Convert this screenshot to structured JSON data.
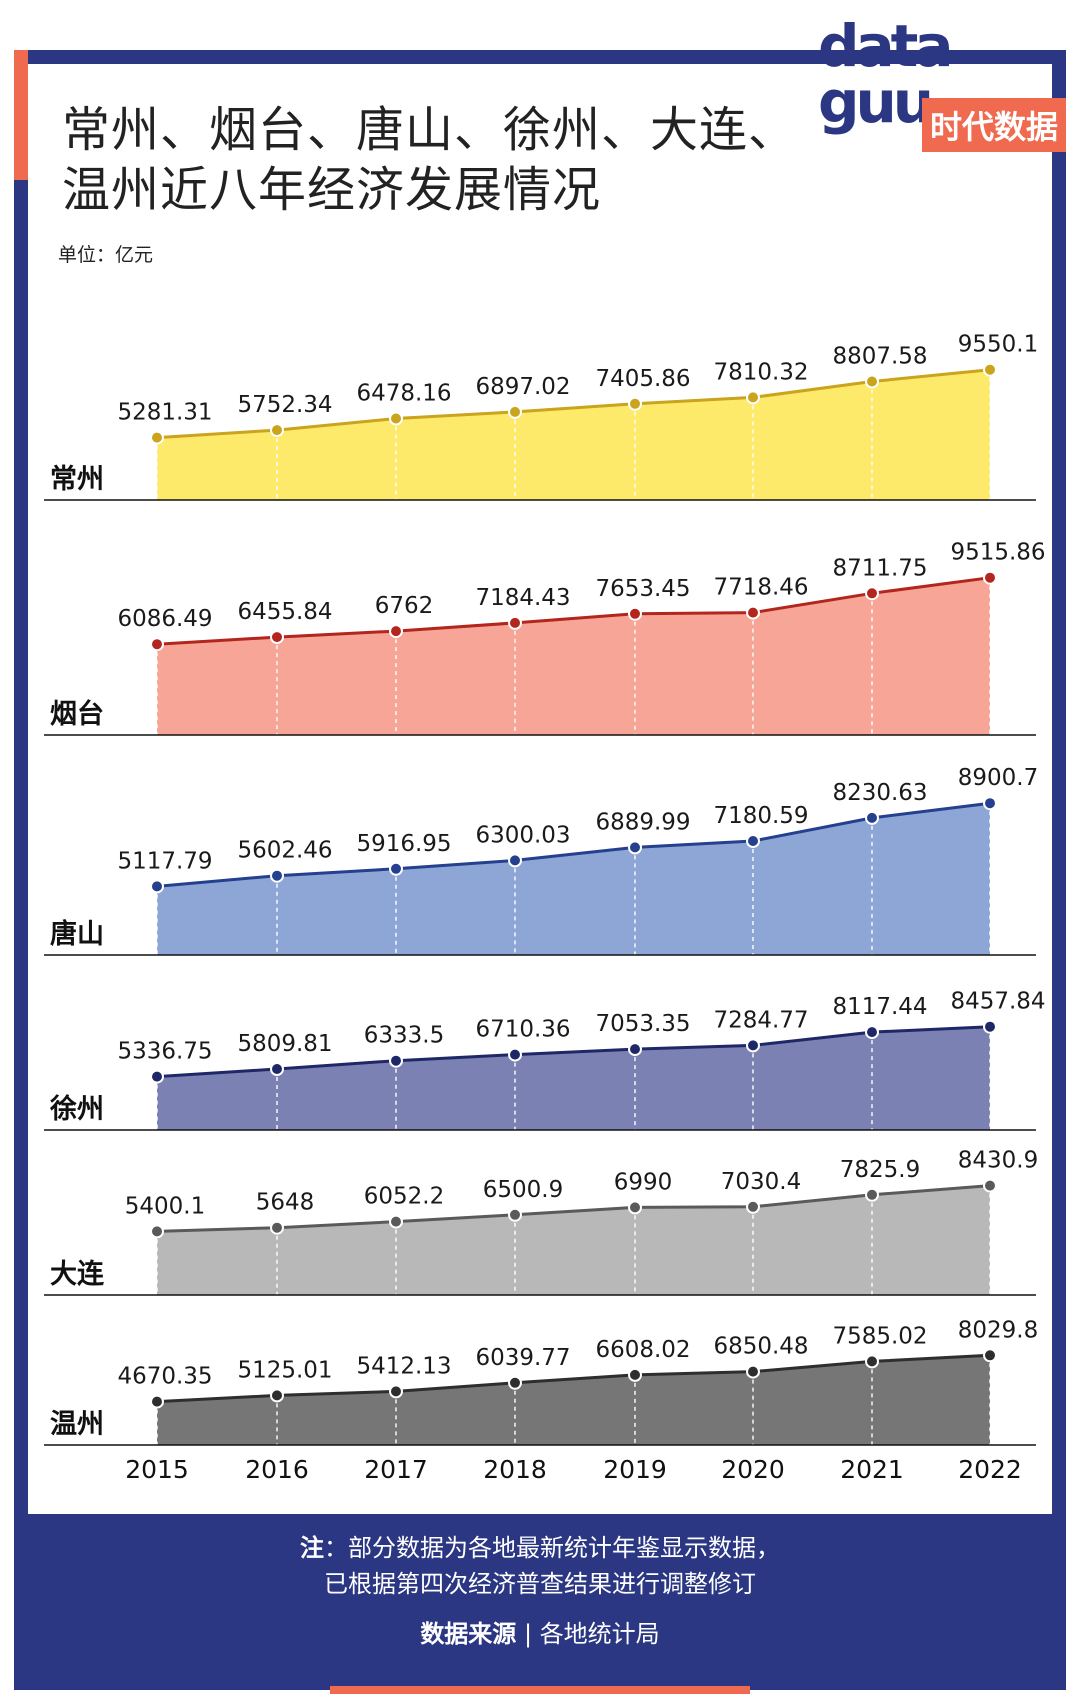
{
  "title": [
    "常州、烟台、唐山、徐州、大连、",
    "温州近八年经济发展情况"
  ],
  "unit": "单位：亿元",
  "logo": {
    "text_top": "data",
    "text_bottom": "guu",
    "cn": "时代数据"
  },
  "note": {
    "head": "注",
    "line1": "：部分数据为各地最新统计年鉴显示数据，",
    "line2": "已根据第四次经济普查结果进行调整修订"
  },
  "source": {
    "label": "数据来源",
    "sep": "|",
    "value": "各地统计局"
  },
  "colors": {
    "frame": "#2b3782",
    "accent": "#ef6a4f"
  },
  "chart_data": {
    "type": "area",
    "categories": [
      "2015",
      "2016",
      "2017",
      "2018",
      "2019",
      "2020",
      "2021",
      "2022"
    ],
    "series": [
      {
        "name": "常州",
        "values": [
          5281.31,
          5752.34,
          6478.16,
          6897.02,
          7405.86,
          7810.32,
          8807.58,
          9550.1
        ],
        "labels": [
          "5281.31",
          "5752.34",
          "6478.16",
          "6897.02",
          "7405.86",
          "7810.32",
          "8807.58",
          "9550.1"
        ],
        "fill": "#fde96a",
        "line": "#c9a41c"
      },
      {
        "name": "烟台",
        "values": [
          6086.49,
          6455.84,
          6762,
          7184.43,
          7653.45,
          7718.46,
          8711.75,
          9515.86
        ],
        "labels": [
          "6086.49",
          "6455.84",
          "6762",
          "7184.43",
          "7653.45",
          "7718.46",
          "8711.75",
          "9515.86"
        ],
        "fill": "#f6a596",
        "line": "#b3261e"
      },
      {
        "name": "唐山",
        "values": [
          5117.79,
          5602.46,
          5916.95,
          6300.03,
          6889.99,
          7180.59,
          8230.63,
          8900.7
        ],
        "labels": [
          "5117.79",
          "5602.46",
          "5916.95",
          "6300.03",
          "6889.99",
          "7180.59",
          "8230.63",
          "8900.7"
        ],
        "fill": "#8da6d6",
        "line": "#24408e"
      },
      {
        "name": "徐州",
        "values": [
          5336.75,
          5809.81,
          6333.5,
          6710.36,
          7053.35,
          7284.77,
          8117.44,
          8457.84
        ],
        "labels": [
          "5336.75",
          "5809.81",
          "6333.5",
          "6710.36",
          "7053.35",
          "7284.77",
          "8117.44",
          "8457.84"
        ],
        "fill": "#7b81b3",
        "line": "#1f2867"
      },
      {
        "name": "大连",
        "values": [
          5400.1,
          5648,
          6052.2,
          6500.9,
          6990,
          7030.4,
          7825.9,
          8430.9
        ],
        "labels": [
          "5400.1",
          "5648",
          "6052.2",
          "6500.9",
          "6990",
          "7030.4",
          "7825.9",
          "8430.9"
        ],
        "fill": "#b8b8b8",
        "line": "#5a5a5a"
      },
      {
        "name": "温州",
        "values": [
          4670.35,
          5125.01,
          5412.13,
          6039.77,
          6608.02,
          6850.48,
          7585.02,
          8029.8
        ],
        "labels": [
          "4670.35",
          "5125.01",
          "5412.13",
          "6039.77",
          "6608.02",
          "6850.48",
          "7585.02",
          "8029.8"
        ],
        "fill": "#767676",
        "line": "#2e2e2e"
      }
    ]
  }
}
